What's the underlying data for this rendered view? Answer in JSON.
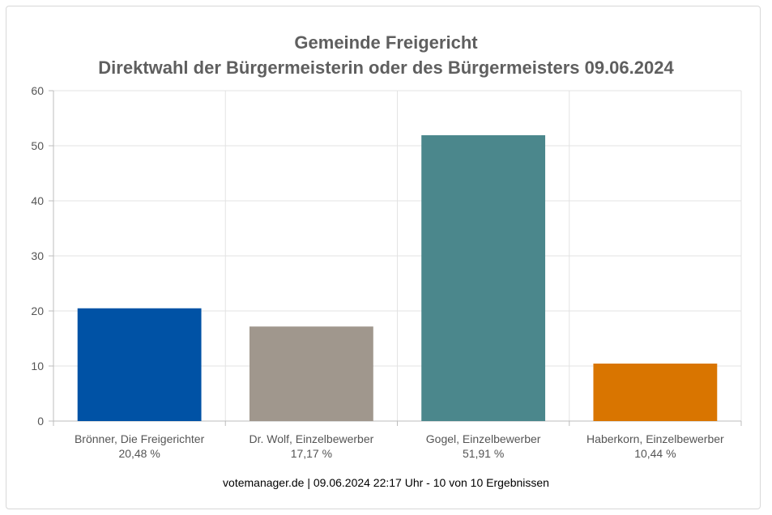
{
  "chart_data": {
    "type": "bar",
    "title": "Gemeinde Freigericht",
    "subtitle": "Direktwahl der Bürgermeisterin oder des Bürgermeisters 09.06.2024",
    "categories": [
      "Brönner, Die Freigerichter",
      "Dr. Wolf, Einzelbewerber",
      "Gogel, Einzelbewerber",
      "Haberkorn, Einzelbewerber"
    ],
    "value_labels": [
      "20,48 %",
      "17,17 %",
      "51,91 %",
      "10,44 %"
    ],
    "values": [
      20.48,
      17.17,
      51.91,
      10.44
    ],
    "colors": [
      "#0052a5",
      "#a0978d",
      "#4b878c",
      "#d97500"
    ],
    "ylim": [
      0,
      60
    ],
    "yticks": [
      0,
      10,
      20,
      30,
      40,
      50,
      60
    ],
    "grid": true,
    "legend": "none"
  },
  "footer": "votemanager.de | 09.06.2024 22:17 Uhr - 10 von 10 Ergebnissen"
}
